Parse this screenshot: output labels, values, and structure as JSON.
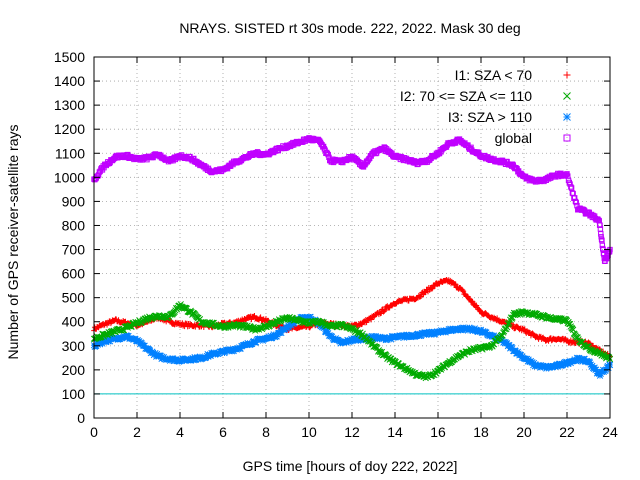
{
  "chart_data": {
    "type": "scatter",
    "title": "NRAYS. SISTED rt 30s mode. 222, 2022. Mask 30 deg",
    "xlabel": "GPS time [hours of doy 222, 2022]",
    "ylabel": "Number of GPS receiver-satellite rays",
    "xlim": [
      0,
      24
    ],
    "ylim": [
      0,
      1500
    ],
    "x_ticks": [
      "0",
      "2",
      "4",
      "6",
      "8",
      "10",
      "12",
      "14",
      "16",
      "18",
      "20",
      "22",
      "24"
    ],
    "y_ticks": [
      "0",
      "100",
      "200",
      "300",
      "400",
      "500",
      "600",
      "700",
      "800",
      "900",
      "1000",
      "1100",
      "1200",
      "1300",
      "1400",
      "1500"
    ],
    "grid": true,
    "legend_position": "top-right",
    "reference_line": {
      "y": 100,
      "color": "#00c0c0"
    },
    "series": [
      {
        "name": "I1: SZA < 70",
        "marker": "+",
        "color": "#ff0000",
        "points": [
          [
            0,
            370
          ],
          [
            0.5,
            390
          ],
          [
            1,
            405
          ],
          [
            1.5,
            395
          ],
          [
            2,
            385
          ],
          [
            2.5,
            400
          ],
          [
            3,
            420
          ],
          [
            3.5,
            400
          ],
          [
            4,
            390
          ],
          [
            4.5,
            385
          ],
          [
            5,
            385
          ],
          [
            5.5,
            380
          ],
          [
            6,
            390
          ],
          [
            6.5,
            395
          ],
          [
            7,
            410
          ],
          [
            7.5,
            420
          ],
          [
            8,
            405
          ],
          [
            8.5,
            385
          ],
          [
            9,
            370
          ],
          [
            9.5,
            375
          ],
          [
            10,
            380
          ],
          [
            10.5,
            395
          ],
          [
            11,
            390
          ],
          [
            11.5,
            385
          ],
          [
            12,
            380
          ],
          [
            12.5,
            395
          ],
          [
            13,
            420
          ],
          [
            13.5,
            450
          ],
          [
            14,
            480
          ],
          [
            14.5,
            490
          ],
          [
            15,
            500
          ],
          [
            15.5,
            530
          ],
          [
            16,
            560
          ],
          [
            16.5,
            570
          ],
          [
            17,
            540
          ],
          [
            17.5,
            490
          ],
          [
            18,
            440
          ],
          [
            18.5,
            420
          ],
          [
            19,
            400
          ],
          [
            19.5,
            380
          ],
          [
            20,
            365
          ],
          [
            20.5,
            340
          ],
          [
            21,
            325
          ],
          [
            21.5,
            330
          ],
          [
            22,
            320
          ],
          [
            22.5,
            315
          ],
          [
            23,
            310
          ],
          [
            23.5,
            280
          ],
          [
            24,
            255
          ]
        ]
      },
      {
        "name": "I2: 70 <= SZA <= 110",
        "marker": "x",
        "color": "#00aa00",
        "points": [
          [
            0,
            330
          ],
          [
            0.5,
            345
          ],
          [
            1,
            360
          ],
          [
            1.5,
            375
          ],
          [
            2,
            395
          ],
          [
            2.5,
            415
          ],
          [
            3,
            425
          ],
          [
            3.5,
            420
          ],
          [
            4,
            470
          ],
          [
            4.5,
            440
          ],
          [
            5,
            400
          ],
          [
            5.5,
            390
          ],
          [
            6,
            380
          ],
          [
            6.5,
            385
          ],
          [
            7,
            380
          ],
          [
            7.5,
            370
          ],
          [
            8,
            380
          ],
          [
            8.5,
            400
          ],
          [
            9,
            415
          ],
          [
            9.5,
            405
          ],
          [
            10,
            395
          ],
          [
            10.5,
            400
          ],
          [
            11,
            380
          ],
          [
            11.5,
            385
          ],
          [
            12,
            370
          ],
          [
            12.5,
            345
          ],
          [
            13,
            300
          ],
          [
            13.5,
            260
          ],
          [
            14,
            230
          ],
          [
            14.5,
            205
          ],
          [
            15,
            180
          ],
          [
            15.5,
            170
          ],
          [
            16,
            195
          ],
          [
            16.5,
            230
          ],
          [
            17,
            260
          ],
          [
            17.5,
            280
          ],
          [
            18,
            290
          ],
          [
            18.5,
            300
          ],
          [
            19,
            345
          ],
          [
            19.5,
            430
          ],
          [
            20,
            440
          ],
          [
            20.5,
            430
          ],
          [
            21,
            420
          ],
          [
            21.5,
            410
          ],
          [
            22,
            405
          ],
          [
            22.5,
            330
          ],
          [
            23,
            290
          ],
          [
            23.5,
            270
          ],
          [
            24,
            245
          ]
        ]
      },
      {
        "name": "I3: SZA > 110",
        "marker": "*",
        "color": "#0080ff",
        "points": [
          [
            0,
            300
          ],
          [
            0.5,
            320
          ],
          [
            1,
            330
          ],
          [
            1.5,
            340
          ],
          [
            2,
            320
          ],
          [
            2.5,
            285
          ],
          [
            3,
            255
          ],
          [
            3.5,
            245
          ],
          [
            4,
            240
          ],
          [
            4.5,
            245
          ],
          [
            5,
            250
          ],
          [
            5.5,
            265
          ],
          [
            6,
            275
          ],
          [
            6.5,
            285
          ],
          [
            7,
            300
          ],
          [
            7.5,
            320
          ],
          [
            8,
            330
          ],
          [
            8.5,
            345
          ],
          [
            9,
            380
          ],
          [
            9.5,
            410
          ],
          [
            10,
            420
          ],
          [
            10.5,
            390
          ],
          [
            11,
            340
          ],
          [
            11.5,
            310
          ],
          [
            12,
            325
          ],
          [
            12.5,
            330
          ],
          [
            13,
            335
          ],
          [
            13.5,
            330
          ],
          [
            14,
            335
          ],
          [
            14.5,
            340
          ],
          [
            15,
            345
          ],
          [
            15.5,
            350
          ],
          [
            16,
            355
          ],
          [
            16.5,
            365
          ],
          [
            17,
            370
          ],
          [
            17.5,
            370
          ],
          [
            18,
            360
          ],
          [
            18.5,
            340
          ],
          [
            19,
            320
          ],
          [
            19.5,
            285
          ],
          [
            20,
            250
          ],
          [
            20.5,
            220
          ],
          [
            21,
            210
          ],
          [
            21.5,
            215
          ],
          [
            22,
            230
          ],
          [
            22.5,
            245
          ],
          [
            23,
            235
          ],
          [
            23.5,
            180
          ],
          [
            24,
            220
          ]
        ]
      },
      {
        "name": "global",
        "marker": "square",
        "color": "#c000ff",
        "points": [
          [
            0,
            990
          ],
          [
            0.5,
            1050
          ],
          [
            1,
            1085
          ],
          [
            1.5,
            1090
          ],
          [
            2,
            1075
          ],
          [
            2.5,
            1080
          ],
          [
            3,
            1095
          ],
          [
            3.5,
            1065
          ],
          [
            4,
            1090
          ],
          [
            4.5,
            1080
          ],
          [
            5,
            1050
          ],
          [
            5.5,
            1025
          ],
          [
            6,
            1030
          ],
          [
            6.5,
            1060
          ],
          [
            7,
            1080
          ],
          [
            7.5,
            1100
          ],
          [
            8,
            1095
          ],
          [
            8.5,
            1115
          ],
          [
            9,
            1130
          ],
          [
            9.5,
            1145
          ],
          [
            10,
            1160
          ],
          [
            10.5,
            1150
          ],
          [
            11,
            1070
          ],
          [
            11.5,
            1065
          ],
          [
            12,
            1085
          ],
          [
            12.5,
            1045
          ],
          [
            13,
            1100
          ],
          [
            13.5,
            1120
          ],
          [
            14,
            1085
          ],
          [
            14.5,
            1075
          ],
          [
            15,
            1060
          ],
          [
            15.5,
            1070
          ],
          [
            16,
            1100
          ],
          [
            16.5,
            1140
          ],
          [
            17,
            1155
          ],
          [
            17.5,
            1120
          ],
          [
            18,
            1090
          ],
          [
            18.5,
            1075
          ],
          [
            19,
            1065
          ],
          [
            19.5,
            1050
          ],
          [
            20,
            1000
          ],
          [
            20.5,
            985
          ],
          [
            21,
            990
          ],
          [
            21.5,
            1010
          ],
          [
            22,
            1010
          ],
          [
            22.5,
            870
          ],
          [
            23,
            850
          ],
          [
            23.5,
            820
          ],
          [
            23.75,
            650
          ],
          [
            24,
            700
          ]
        ]
      }
    ]
  }
}
